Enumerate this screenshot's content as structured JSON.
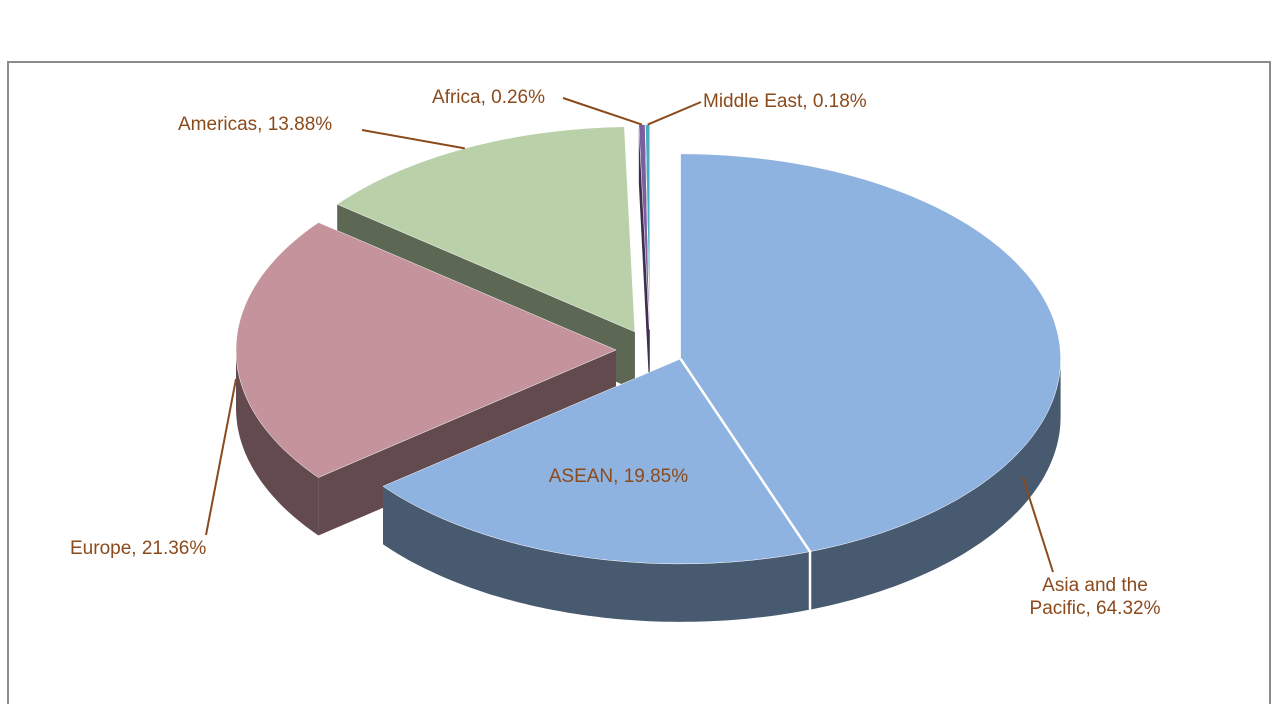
{
  "chart_data": {
    "type": "pie",
    "categories": [
      "Asia and the Pacific",
      "Europe",
      "Americas",
      "Africa",
      "Middle East"
    ],
    "values": [
      64.32,
      21.36,
      13.88,
      0.26,
      0.18
    ],
    "value_labels": [
      "Asia and the Pacific, 64.32%",
      "Europe, 21.36%",
      "Americas, 13.88%",
      "Africa, 0.26%",
      "Middle East, 0.18%"
    ],
    "colors": [
      "#8fb3e0",
      "#c4939c",
      "#b9d0a9",
      "#7b5e9c",
      "#4bacc6"
    ],
    "sub_slice": {
      "label": "ASEAN, 19.85%",
      "value": 19.85
    }
  }
}
